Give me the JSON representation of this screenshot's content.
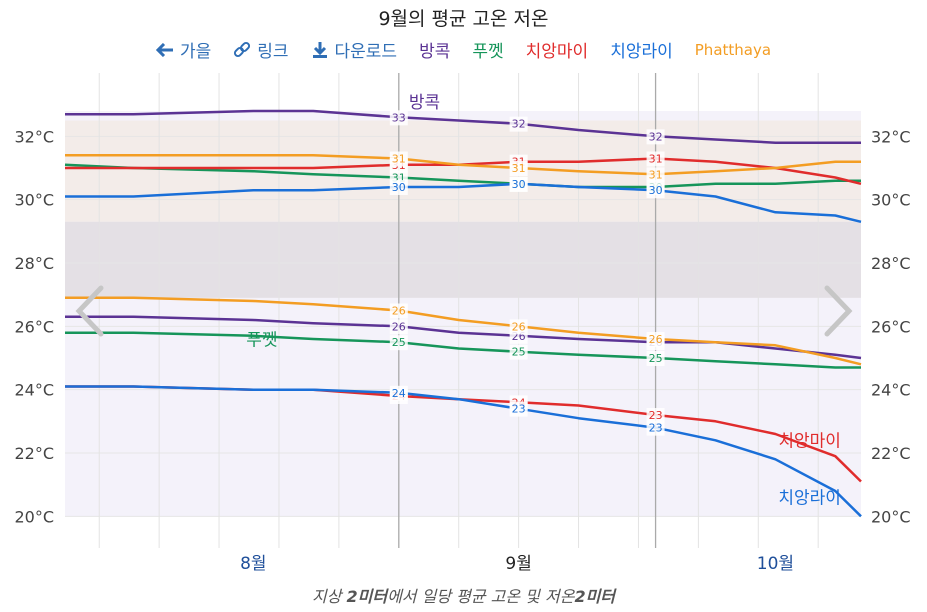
{
  "title": "9월의 평균 고온 저온",
  "caption": {
    "pre": "지상 ",
    "bold1": "2미터",
    "mid": "에서 일당 평균 고온 및 저온",
    "bold2": "2미터"
  },
  "toolbar": [
    {
      "icon": "arrow-left-icon",
      "label": "가을",
      "color": "#2f6eb5"
    },
    {
      "icon": "link-icon",
      "label": "링크",
      "color": "#2f6eb5"
    },
    {
      "icon": "download-icon",
      "label": "다운로드",
      "color": "#2f6eb5"
    }
  ],
  "legend": [
    {
      "label": "방콕",
      "color": "#5b3394"
    },
    {
      "label": "푸껫",
      "color": "#16955a"
    },
    {
      "label": "치앙마이",
      "color": "#e02c2c"
    },
    {
      "label": "치앙라이",
      "color": "#1a6fd8"
    },
    {
      "label": "Phatthaya",
      "color": "#f39d23"
    }
  ],
  "nav": {
    "prev_icon": "chevron-left-icon",
    "next_icon": "chevron-right-icon"
  },
  "chart_data": {
    "type": "line",
    "title": "9월의 평균 고온 저온",
    "y_unit": "°C",
    "ylim": [
      19,
      34
    ],
    "yticks": [
      20,
      22,
      24,
      26,
      28,
      30,
      32
    ],
    "ytick_labels": [
      "20°C",
      "22°C",
      "24°C",
      "26°C",
      "28°C",
      "30°C",
      "32°C"
    ],
    "x_range": [
      "07-24",
      "10-25"
    ],
    "month_labels": [
      {
        "date": "08-15",
        "label": "8월"
      },
      {
        "date": "09-15",
        "label": "9월"
      },
      {
        "date": "10-15",
        "label": "10월"
      }
    ],
    "period_markers": [
      "09-01",
      "10-01"
    ],
    "grid": true,
    "series": [
      {
        "name": "방콕",
        "kind": "high",
        "color": "#5b3394",
        "x": [
          "07-24",
          "08-01",
          "08-15",
          "08-22",
          "09-01",
          "09-08",
          "09-15",
          "09-22",
          "10-01",
          "10-08",
          "10-15",
          "10-22",
          "10-25"
        ],
        "y": [
          32.7,
          32.7,
          32.8,
          32.8,
          32.6,
          32.5,
          32.4,
          32.2,
          32.0,
          31.9,
          31.8,
          31.8,
          31.8
        ],
        "labels": [
          {
            "x": "09-01",
            "text": "33"
          },
          {
            "x": "09-15",
            "text": "32"
          },
          {
            "x": "10-01",
            "text": "32"
          }
        ]
      },
      {
        "name": "방콕",
        "kind": "low",
        "color": "#5b3394",
        "x": [
          "07-24",
          "08-01",
          "08-15",
          "08-22",
          "09-01",
          "09-08",
          "09-15",
          "09-22",
          "10-01",
          "10-08",
          "10-15",
          "10-22",
          "10-25"
        ],
        "y": [
          26.3,
          26.3,
          26.2,
          26.1,
          26.0,
          25.8,
          25.7,
          25.6,
          25.5,
          25.5,
          25.3,
          25.1,
          25.0
        ],
        "labels": [
          {
            "x": "09-01",
            "text": "26"
          },
          {
            "x": "09-15",
            "text": "26"
          },
          {
            "x": "10-01",
            "text": "26"
          }
        ]
      },
      {
        "name": "푸껫",
        "kind": "high",
        "color": "#16955a",
        "x": [
          "07-24",
          "08-01",
          "08-15",
          "08-22",
          "09-01",
          "09-08",
          "09-15",
          "09-22",
          "10-01",
          "10-08",
          "10-15",
          "10-22",
          "10-25"
        ],
        "y": [
          31.1,
          31.0,
          30.9,
          30.8,
          30.7,
          30.6,
          30.5,
          30.4,
          30.4,
          30.5,
          30.5,
          30.6,
          30.6
        ],
        "labels": [
          {
            "x": "09-01",
            "text": "31"
          },
          {
            "x": "09-15",
            "text": "31"
          },
          {
            "x": "10-01",
            "text": "30"
          }
        ]
      },
      {
        "name": "푸껫",
        "kind": "low",
        "color": "#16955a",
        "x": [
          "07-24",
          "08-01",
          "08-15",
          "08-22",
          "09-01",
          "09-08",
          "09-15",
          "09-22",
          "10-01",
          "10-08",
          "10-15",
          "10-22",
          "10-25"
        ],
        "y": [
          25.8,
          25.8,
          25.7,
          25.6,
          25.5,
          25.3,
          25.2,
          25.1,
          25.0,
          24.9,
          24.8,
          24.7,
          24.7
        ],
        "labels": [
          {
            "x": "09-01",
            "text": "25"
          },
          {
            "x": "09-15",
            "text": "25"
          },
          {
            "x": "10-01",
            "text": "25"
          }
        ]
      },
      {
        "name": "치앙마이",
        "kind": "high",
        "color": "#e02c2c",
        "x": [
          "07-24",
          "08-01",
          "08-15",
          "08-22",
          "09-01",
          "09-08",
          "09-15",
          "09-22",
          "10-01",
          "10-08",
          "10-15",
          "10-22",
          "10-25"
        ],
        "y": [
          31.0,
          31.0,
          31.0,
          31.0,
          31.1,
          31.1,
          31.2,
          31.2,
          31.3,
          31.2,
          31.0,
          30.7,
          30.5
        ],
        "labels": [
          {
            "x": "09-01",
            "text": "31"
          },
          {
            "x": "09-15",
            "text": "31"
          },
          {
            "x": "10-01",
            "text": "31"
          }
        ]
      },
      {
        "name": "치앙마이",
        "kind": "low",
        "color": "#e02c2c",
        "x": [
          "07-24",
          "08-01",
          "08-15",
          "08-22",
          "09-01",
          "09-08",
          "09-15",
          "09-22",
          "10-01",
          "10-08",
          "10-15",
          "10-22",
          "10-25"
        ],
        "y": [
          24.1,
          24.1,
          24.0,
          24.0,
          23.8,
          23.7,
          23.6,
          23.5,
          23.2,
          23.0,
          22.6,
          21.9,
          21.1
        ],
        "labels": [
          {
            "x": "09-01",
            "text": "24"
          },
          {
            "x": "09-15",
            "text": "24"
          },
          {
            "x": "10-01",
            "text": "23"
          }
        ]
      },
      {
        "name": "치앙라이",
        "kind": "high",
        "color": "#1a6fd8",
        "x": [
          "07-24",
          "08-01",
          "08-15",
          "08-22",
          "09-01",
          "09-08",
          "09-15",
          "09-22",
          "10-01",
          "10-08",
          "10-15",
          "10-22",
          "10-25"
        ],
        "y": [
          30.1,
          30.1,
          30.3,
          30.3,
          30.4,
          30.4,
          30.5,
          30.4,
          30.3,
          30.1,
          29.6,
          29.5,
          29.3
        ],
        "labels": [
          {
            "x": "09-01",
            "text": "30"
          },
          {
            "x": "09-15",
            "text": "30"
          },
          {
            "x": "10-01",
            "text": "30"
          }
        ]
      },
      {
        "name": "치앙라이",
        "kind": "low",
        "color": "#1a6fd8",
        "x": [
          "07-24",
          "08-01",
          "08-15",
          "08-22",
          "09-01",
          "09-08",
          "09-15",
          "09-22",
          "10-01",
          "10-08",
          "10-15",
          "10-22",
          "10-25"
        ],
        "y": [
          24.1,
          24.1,
          24.0,
          24.0,
          23.9,
          23.7,
          23.4,
          23.1,
          22.8,
          22.4,
          21.8,
          20.8,
          20.0
        ],
        "labels": [
          {
            "x": "09-01",
            "text": "24"
          },
          {
            "x": "09-15",
            "text": "23"
          },
          {
            "x": "10-01",
            "text": "23"
          }
        ]
      },
      {
        "name": "Phatthaya",
        "kind": "high",
        "color": "#f39d23",
        "x": [
          "07-24",
          "08-01",
          "08-15",
          "08-22",
          "09-01",
          "09-08",
          "09-15",
          "09-22",
          "10-01",
          "10-08",
          "10-15",
          "10-22",
          "10-25"
        ],
        "y": [
          31.4,
          31.4,
          31.4,
          31.4,
          31.3,
          31.1,
          31.0,
          30.9,
          30.8,
          30.9,
          31.0,
          31.2,
          31.2
        ],
        "labels": [
          {
            "x": "09-01",
            "text": "31"
          },
          {
            "x": "09-15",
            "text": "31"
          },
          {
            "x": "10-01",
            "text": "31"
          }
        ]
      },
      {
        "name": "Phatthaya",
        "kind": "low",
        "color": "#f39d23",
        "x": [
          "07-24",
          "08-01",
          "08-15",
          "08-22",
          "09-01",
          "09-08",
          "09-15",
          "09-22",
          "10-01",
          "10-08",
          "10-15",
          "10-22",
          "10-25"
        ],
        "y": [
          26.9,
          26.9,
          26.8,
          26.7,
          26.5,
          26.2,
          26.0,
          25.8,
          25.6,
          25.5,
          25.4,
          25.0,
          24.8
        ],
        "labels": [
          {
            "x": "09-01",
            "text": "26"
          },
          {
            "x": "09-15",
            "text": "26"
          },
          {
            "x": "10-01",
            "text": "26"
          }
        ]
      }
    ],
    "annotations": [
      {
        "text": "방콕",
        "x": "09-04",
        "y": 32.9,
        "color": "#5b3394"
      },
      {
        "text": "푸껫",
        "x": "08-16",
        "y": 25.4,
        "color": "#16955a"
      },
      {
        "text": "치앙마이",
        "x": "10-19",
        "y": 22.2,
        "color": "#e02c2c"
      },
      {
        "text": "치앙라이",
        "x": "10-19",
        "y": 20.4,
        "color": "#1a6fd8"
      }
    ]
  }
}
